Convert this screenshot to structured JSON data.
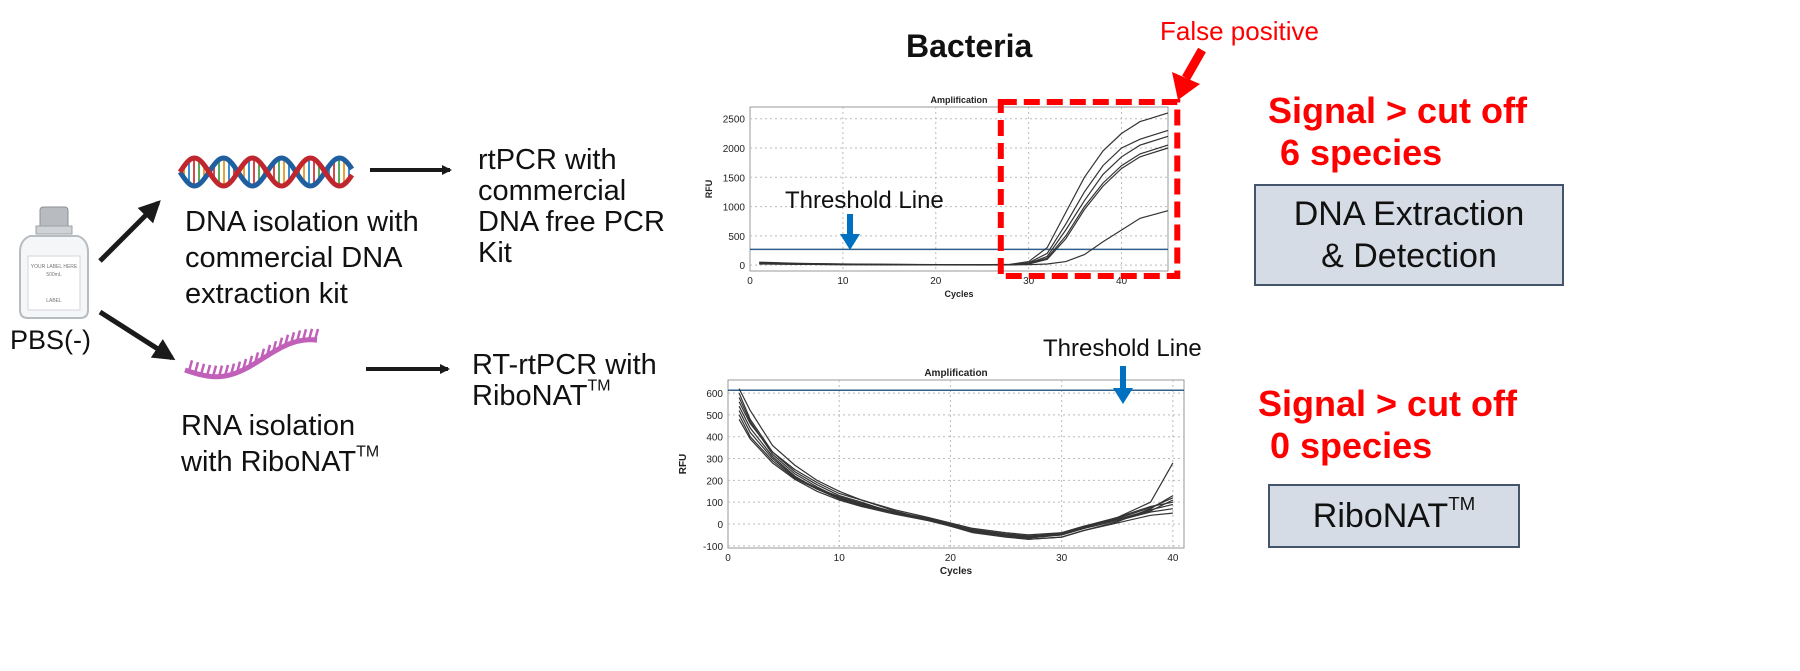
{
  "sample": {
    "label": "PBS(-)",
    "bottle_text": [
      "YOUR LABEL HERE",
      "500mL",
      "LABEL"
    ]
  },
  "dna_branch": {
    "isolation_text": [
      "DNA isolation with",
      "commercial DNA",
      "extraction kit"
    ],
    "pcr_text": [
      "rtPCR with",
      "commercial",
      "DNA free PCR",
      "Kit"
    ]
  },
  "rna_branch": {
    "isolation_text": [
      "RNA isolation",
      "with RiboNAT"
    ],
    "isolation_sup": "TM",
    "pcr_text": [
      "RT-rtPCR with",
      "RiboNAT"
    ],
    "pcr_sup": "TM"
  },
  "section_title": "Bacteria",
  "false_positive_label": "False positive",
  "top_result": {
    "line1": "Signal > cut off",
    "line2": "6 species"
  },
  "top_box": {
    "line1": "DNA Extraction",
    "line2": "& Detection"
  },
  "bottom_result": {
    "line1": "Signal > cut off",
    "line2": "0 species"
  },
  "bottom_box": {
    "label": "RiboNAT",
    "sup": "TM"
  },
  "colors": {
    "red": "#ff0000",
    "blue_arrow": "#0070c0",
    "box_fill": "#d6dce5",
    "box_border": "#44546a",
    "threshold": "#2f5f8a"
  },
  "chart_data": [
    {
      "type": "line",
      "title": "Amplification",
      "xlabel": "Cycles",
      "ylabel": "RFU",
      "xlim": [
        0,
        45
      ],
      "ylim": [
        -100,
        2700
      ],
      "xticks": [
        0,
        10,
        20,
        30,
        40
      ],
      "yticks": [
        0,
        500,
        1000,
        1500,
        2000,
        2500
      ],
      "threshold": 270,
      "threshold_label": "Threshold Line",
      "highlight_x": [
        27,
        46
      ],
      "series": [
        {
          "x": [
            1,
            5,
            10,
            15,
            20,
            25,
            28,
            30,
            32,
            34,
            36,
            38,
            40,
            42,
            45
          ],
          "values": [
            50,
            30,
            20,
            15,
            10,
            8,
            15,
            60,
            300,
            900,
            1500,
            1950,
            2250,
            2450,
            2600
          ]
        },
        {
          "x": [
            1,
            5,
            10,
            15,
            20,
            25,
            28,
            30,
            32,
            34,
            36,
            38,
            40,
            42,
            45
          ],
          "values": [
            40,
            25,
            15,
            10,
            8,
            6,
            10,
            40,
            200,
            700,
            1250,
            1700,
            2000,
            2150,
            2300
          ]
        },
        {
          "x": [
            1,
            5,
            10,
            15,
            20,
            25,
            28,
            30,
            32,
            34,
            36,
            38,
            40,
            42,
            45
          ],
          "values": [
            30,
            20,
            12,
            8,
            5,
            5,
            8,
            30,
            150,
            600,
            1100,
            1550,
            1850,
            2050,
            2200
          ]
        },
        {
          "x": [
            1,
            5,
            10,
            15,
            20,
            25,
            28,
            30,
            32,
            34,
            36,
            38,
            40,
            42,
            45
          ],
          "values": [
            20,
            15,
            10,
            6,
            4,
            4,
            6,
            20,
            100,
            450,
            950,
            1350,
            1650,
            1850,
            2000
          ]
        },
        {
          "x": [
            1,
            5,
            10,
            15,
            20,
            25,
            28,
            30,
            32,
            34,
            36,
            38,
            40,
            42,
            45
          ],
          "values": [
            45,
            28,
            18,
            12,
            8,
            6,
            9,
            25,
            120,
            500,
            1000,
            1400,
            1700,
            1900,
            2050
          ]
        },
        {
          "x": [
            1,
            5,
            10,
            15,
            20,
            25,
            28,
            30,
            32,
            34,
            36,
            38,
            40,
            42,
            45
          ],
          "values": [
            25,
            15,
            10,
            6,
            4,
            3,
            4,
            8,
            20,
            60,
            180,
            400,
            600,
            800,
            930
          ]
        }
      ]
    },
    {
      "type": "line",
      "title": "Amplification",
      "xlabel": "Cycles",
      "ylabel": "RFU",
      "xlim": [
        0,
        41
      ],
      "ylim": [
        -110,
        660
      ],
      "xticks": [
        0,
        10,
        20,
        30,
        40
      ],
      "yticks": [
        -100,
        0,
        100,
        200,
        300,
        400,
        500,
        600
      ],
      "threshold": 613,
      "threshold_label": "Threshold Line",
      "series": [
        {
          "x": [
            1,
            2,
            4,
            6,
            8,
            10,
            12,
            15,
            18,
            20,
            22,
            25,
            27,
            30,
            32,
            35,
            38,
            40
          ],
          "values": [
            620,
            520,
            360,
            270,
            200,
            150,
            110,
            60,
            20,
            0,
            -30,
            -50,
            -60,
            -50,
            -20,
            30,
            100,
            280
          ]
        },
        {
          "x": [
            1,
            2,
            4,
            6,
            8,
            10,
            12,
            15,
            18,
            20,
            22,
            25,
            27,
            30,
            32,
            35,
            38,
            40
          ],
          "values": [
            600,
            480,
            330,
            240,
            180,
            130,
            100,
            50,
            20,
            -10,
            -40,
            -60,
            -70,
            -60,
            -30,
            10,
            70,
            130
          ]
        },
        {
          "x": [
            1,
            2,
            4,
            6,
            8,
            10,
            12,
            15,
            18,
            20,
            22,
            25,
            27,
            30,
            32,
            35,
            38,
            40
          ],
          "values": [
            580,
            470,
            320,
            230,
            170,
            120,
            90,
            55,
            25,
            0,
            -30,
            -50,
            -60,
            -40,
            -10,
            30,
            80,
            100
          ]
        },
        {
          "x": [
            1,
            2,
            4,
            6,
            8,
            10,
            12,
            15,
            18,
            20,
            22,
            25,
            27,
            30,
            32,
            35,
            38,
            40
          ],
          "values": [
            560,
            460,
            330,
            250,
            190,
            140,
            110,
            65,
            30,
            5,
            -20,
            -40,
            -50,
            -40,
            -10,
            20,
            60,
            110
          ]
        },
        {
          "x": [
            1,
            2,
            4,
            6,
            8,
            10,
            12,
            15,
            18,
            20,
            22,
            25,
            27,
            30,
            32,
            35,
            38,
            40
          ],
          "values": [
            540,
            440,
            310,
            220,
            160,
            115,
            85,
            50,
            20,
            -5,
            -35,
            -55,
            -65,
            -50,
            -20,
            15,
            55,
            70
          ]
        },
        {
          "x": [
            1,
            2,
            4,
            6,
            8,
            10,
            12,
            15,
            18,
            20,
            22,
            25,
            27,
            30,
            32,
            35,
            38,
            40
          ],
          "values": [
            520,
            420,
            300,
            215,
            165,
            125,
            95,
            55,
            25,
            0,
            -25,
            -45,
            -55,
            -45,
            -15,
            20,
            65,
            90
          ]
        },
        {
          "x": [
            1,
            2,
            4,
            6,
            8,
            10,
            12,
            15,
            18,
            20,
            22,
            25,
            27,
            30,
            32,
            35,
            38,
            40
          ],
          "values": [
            500,
            400,
            290,
            210,
            160,
            120,
            90,
            50,
            20,
            -5,
            -30,
            -50,
            -60,
            -45,
            -15,
            25,
            75,
            120
          ]
        },
        {
          "x": [
            1,
            2,
            4,
            6,
            8,
            10,
            12,
            15,
            18,
            20,
            22,
            25,
            27,
            30,
            32,
            35,
            38,
            40
          ],
          "values": [
            480,
            390,
            280,
            205,
            150,
            110,
            80,
            45,
            15,
            -10,
            -35,
            -55,
            -70,
            -60,
            -30,
            5,
            40,
            50
          ]
        }
      ]
    }
  ]
}
